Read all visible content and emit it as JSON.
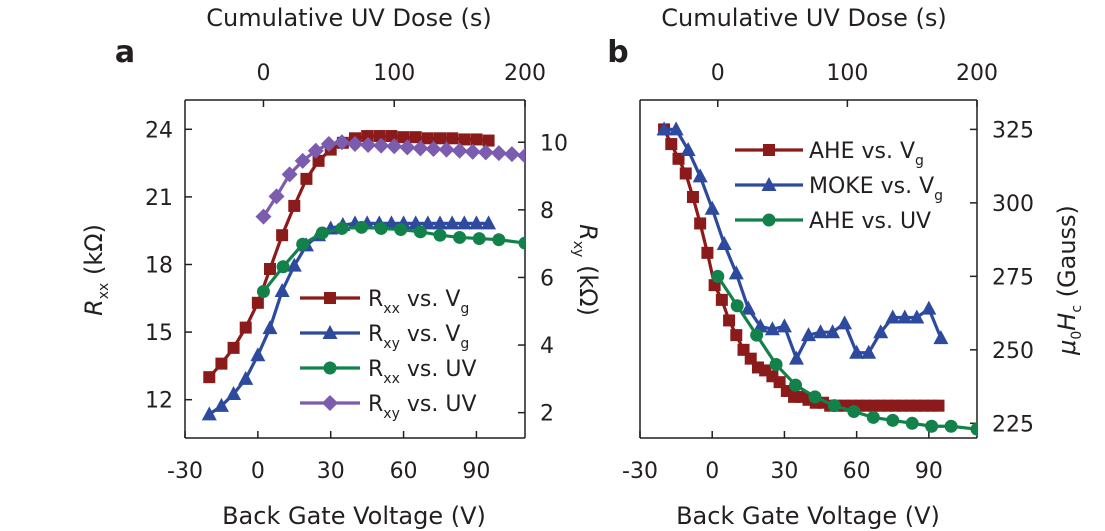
{
  "chart_data": [
    {
      "type": "line",
      "panel_label": "a",
      "title_top": "Cumulative UV Dose (s)",
      "xlabel": "Back Gate Voltage (V)",
      "ylabel_left": {
        "main": "R",
        "sub": "xx",
        "unit": " (kΩ)"
      },
      "ylabel_right": {
        "main": "R",
        "sub": "xy",
        "unit": " (kΩ)"
      },
      "xlim": [
        -30,
        110
      ],
      "xticks": [
        "-30",
        "0",
        "30",
        "60",
        "90"
      ],
      "x2lim": [
        -60,
        200
      ],
      "x2ticks": [
        "0",
        "100",
        "200"
      ],
      "ylim_left": [
        10.3,
        25.3
      ],
      "yticks_left": [
        "12",
        "15",
        "18",
        "21",
        "24"
      ],
      "ylim_right": [
        1.25,
        11.25
      ],
      "yticks_right": [
        "2",
        "4",
        "6",
        "8",
        "10"
      ],
      "series": [
        {
          "name": "Rxx vs. Vg",
          "legend_main": "R",
          "legend_sub": "xx",
          "legend_rest": " vs. V",
          "legend_sub2": "g",
          "color": "#8b1a1a",
          "marker": "square",
          "axis": "left",
          "xaxis": "bottom",
          "x": [
            -20,
            -15,
            -10,
            -5,
            0,
            5,
            10,
            15,
            20,
            25,
            30,
            35,
            40,
            45,
            50,
            55,
            60,
            65,
            70,
            75,
            80,
            85,
            90,
            95
          ],
          "y": [
            13.0,
            13.6,
            14.3,
            15.2,
            16.3,
            17.8,
            19.3,
            20.6,
            21.8,
            22.6,
            23.1,
            23.4,
            23.6,
            23.7,
            23.7,
            23.7,
            23.65,
            23.65,
            23.6,
            23.6,
            23.6,
            23.55,
            23.55,
            23.5
          ]
        },
        {
          "name": "Rxy vs. Vg",
          "legend_main": "R",
          "legend_sub": "xy",
          "legend_rest": " vs. V",
          "legend_sub2": "g",
          "color": "#2e4a9e",
          "marker": "triangle",
          "axis": "right",
          "xaxis": "bottom",
          "x": [
            -20,
            -15,
            -10,
            -5,
            0,
            5,
            10,
            15,
            20,
            25,
            30,
            35,
            40,
            45,
            50,
            55,
            60,
            65,
            70,
            75,
            80,
            85,
            90,
            95
          ],
          "y": [
            1.95,
            2.2,
            2.55,
            3.0,
            3.7,
            4.5,
            5.6,
            6.35,
            6.95,
            7.25,
            7.45,
            7.55,
            7.6,
            7.6,
            7.6,
            7.6,
            7.6,
            7.6,
            7.6,
            7.6,
            7.6,
            7.6,
            7.6,
            7.6
          ]
        },
        {
          "name": "Rxx vs. UV",
          "legend_main": "R",
          "legend_sub": "xx",
          "legend_rest": " vs. UV",
          "legend_sub2": "",
          "color": "#13824a",
          "marker": "circle",
          "axis": "left",
          "xaxis": "top",
          "x": [
            0,
            15,
            30,
            45,
            60,
            75,
            90,
            105,
            120,
            135,
            150,
            165,
            180,
            200
          ],
          "y": [
            16.8,
            17.9,
            18.9,
            19.4,
            19.6,
            19.65,
            19.6,
            19.55,
            19.45,
            19.3,
            19.2,
            19.15,
            19.1,
            18.95
          ]
        },
        {
          "name": "Rxy vs. UV",
          "legend_main": "R",
          "legend_sub": "xy",
          "legend_rest": " vs. UV",
          "legend_sub2": "",
          "color": "#7b5cae",
          "marker": "diamond",
          "axis": "right",
          "xaxis": "top",
          "x": [
            0,
            10,
            20,
            30,
            40,
            50,
            60,
            70,
            80,
            90,
            100,
            110,
            120,
            130,
            140,
            150,
            160,
            170,
            180,
            190,
            200
          ],
          "y": [
            7.8,
            8.4,
            9.05,
            9.45,
            9.75,
            9.95,
            10.0,
            9.95,
            9.92,
            9.9,
            9.88,
            9.85,
            9.82,
            9.8,
            9.78,
            9.75,
            9.72,
            9.7,
            9.68,
            9.65,
            9.6
          ]
        }
      ]
    },
    {
      "type": "line",
      "panel_label": "b",
      "title_top": "Cumulative UV Dose (s)",
      "xlabel": "Back Gate Voltage (V)",
      "ylabel_right": {
        "main": "μ",
        "sub": "0",
        "main2": "H",
        "sub2": "c",
        "unit": " (Gauss)"
      },
      "xlim": [
        -30,
        110
      ],
      "xticks": [
        "-30",
        "0",
        "30",
        "60",
        "90"
      ],
      "x2lim": [
        -60,
        200
      ],
      "x2ticks": [
        "0",
        "100",
        "200"
      ],
      "ylim_right": [
        220,
        335
      ],
      "yticks_right": [
        "225",
        "250",
        "275",
        "300",
        "325"
      ],
      "series": [
        {
          "name": "AHE vs. Vg",
          "legend_main": "AHE vs. V",
          "legend_sub": "g",
          "color": "#8b1a1a",
          "marker": "square",
          "xaxis": "bottom",
          "x": [
            -20,
            -17,
            -14,
            -11,
            -8,
            -5,
            -2,
            1,
            4,
            7,
            10,
            13,
            16,
            19,
            22,
            25,
            28,
            31,
            34,
            37,
            40,
            43,
            46,
            49,
            52,
            55,
            58,
            61,
            64,
            67,
            70,
            73,
            76,
            79,
            82,
            85,
            88,
            91,
            94
          ],
          "y": [
            325,
            320,
            315,
            310,
            302,
            293,
            283,
            272,
            267,
            260,
            255,
            250,
            247,
            244,
            243,
            241,
            239,
            236,
            234,
            234,
            233,
            232,
            232,
            231,
            231,
            231,
            231,
            231,
            231,
            231,
            231,
            231,
            231,
            231,
            231,
            231,
            231,
            231,
            231
          ]
        },
        {
          "name": "MOKE vs. Vg",
          "legend_main": "MOKE vs. V",
          "legend_sub": "g",
          "color": "#2e4a9e",
          "marker": "triangle",
          "xaxis": "bottom",
          "x": [
            -20,
            -15,
            -10,
            -5,
            0,
            5,
            10,
            15,
            20,
            25,
            30,
            35,
            40,
            45,
            50,
            55,
            60,
            65,
            70,
            75,
            80,
            85,
            90,
            95
          ],
          "y": [
            325,
            325,
            318,
            309,
            298,
            286,
            276,
            264,
            258,
            257,
            258,
            247,
            255,
            256,
            256,
            259,
            249,
            249,
            256,
            261,
            261,
            261,
            264,
            254
          ]
        },
        {
          "name": "AHE vs. UV",
          "legend_main": "AHE vs. UV",
          "legend_sub": "",
          "color": "#13824a",
          "marker": "circle",
          "xaxis": "top",
          "x": [
            0,
            15,
            30,
            45,
            60,
            75,
            90,
            105,
            120,
            135,
            150,
            165,
            180,
            200
          ],
          "y": [
            275,
            265,
            255,
            245,
            238,
            234,
            231,
            229,
            227,
            226,
            225,
            224,
            224,
            223
          ]
        }
      ]
    }
  ]
}
